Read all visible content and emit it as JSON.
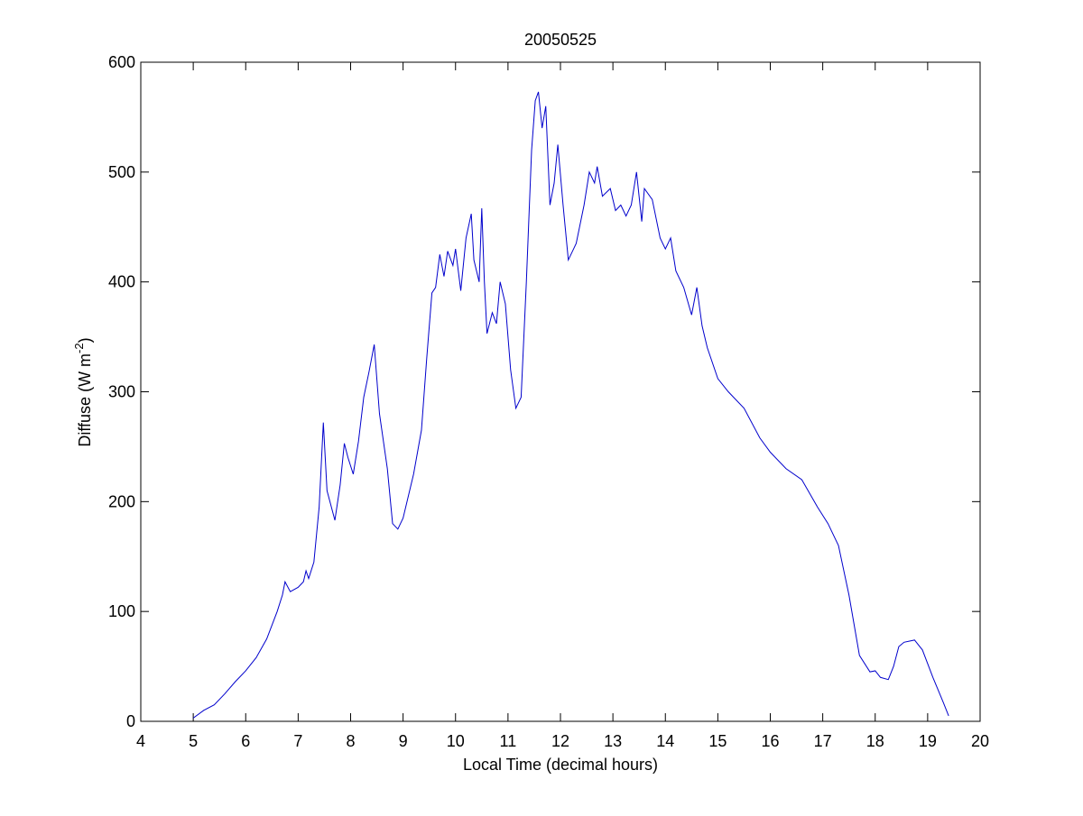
{
  "chart_data": {
    "type": "line",
    "title": "20050525",
    "xlabel": "Local Time (decimal hours)",
    "ylabel": [
      "Diffuse (W m",
      "-2",
      ")"
    ],
    "xlim": [
      4,
      20
    ],
    "xticks": [
      4,
      5,
      6,
      7,
      8,
      9,
      10,
      11,
      12,
      13,
      14,
      15,
      16,
      17,
      18,
      19,
      20
    ],
    "ylim": [
      0,
      600
    ],
    "yticks": [
      0,
      100,
      200,
      300,
      400,
      500,
      600
    ],
    "grid": false,
    "series": [
      {
        "color": "#0000cc",
        "x": [
          5.0,
          5.2,
          5.4,
          5.6,
          5.8,
          6.0,
          6.2,
          6.4,
          6.6,
          6.7,
          6.75,
          6.85,
          7.0,
          7.1,
          7.15,
          7.2,
          7.3,
          7.4,
          7.48,
          7.55,
          7.7,
          7.8,
          7.88,
          7.95,
          8.05,
          8.15,
          8.25,
          8.35,
          8.45,
          8.55,
          8.7,
          8.8,
          8.9,
          9.0,
          9.2,
          9.35,
          9.45,
          9.55,
          9.62,
          9.7,
          9.78,
          9.85,
          9.95,
          10.0,
          10.1,
          10.2,
          10.3,
          10.35,
          10.45,
          10.5,
          10.55,
          10.6,
          10.7,
          10.78,
          10.85,
          10.95,
          11.05,
          11.15,
          11.25,
          11.35,
          11.45,
          11.52,
          11.58,
          11.65,
          11.72,
          11.8,
          11.88,
          11.95,
          12.05,
          12.15,
          12.3,
          12.45,
          12.55,
          12.65,
          12.7,
          12.8,
          12.95,
          13.05,
          13.15,
          13.25,
          13.35,
          13.45,
          13.55,
          13.6,
          13.75,
          13.9,
          14.0,
          14.1,
          14.2,
          14.35,
          14.5,
          14.6,
          14.7,
          14.8,
          15.0,
          15.2,
          15.5,
          15.8,
          16.0,
          16.3,
          16.6,
          16.9,
          17.1,
          17.3,
          17.5,
          17.7,
          17.9,
          18.0,
          18.1,
          18.25,
          18.35,
          18.45,
          18.55,
          18.75,
          18.9,
          19.1,
          19.3,
          19.4
        ],
        "values": [
          3,
          10,
          15,
          25,
          36,
          46,
          58,
          75,
          100,
          115,
          127,
          118,
          122,
          127,
          137,
          130,
          145,
          195,
          272,
          210,
          183,
          215,
          253,
          240,
          225,
          255,
          295,
          318,
          343,
          280,
          230,
          180,
          175,
          185,
          225,
          265,
          330,
          390,
          395,
          425,
          405,
          428,
          415,
          430,
          392,
          440,
          462,
          420,
          400,
          467,
          400,
          353,
          372,
          362,
          400,
          380,
          320,
          285,
          295,
          400,
          520,
          565,
          573,
          540,
          560,
          470,
          490,
          525,
          470,
          420,
          435,
          470,
          500,
          490,
          505,
          478,
          485,
          465,
          470,
          460,
          470,
          500,
          455,
          485,
          475,
          440,
          430,
          440,
          410,
          395,
          370,
          395,
          360,
          340,
          312,
          300,
          285,
          258,
          245,
          230,
          220,
          195,
          180,
          160,
          115,
          60,
          45,
          46,
          40,
          38,
          50,
          68,
          72,
          74,
          65,
          40,
          17,
          5
        ]
      }
    ]
  }
}
